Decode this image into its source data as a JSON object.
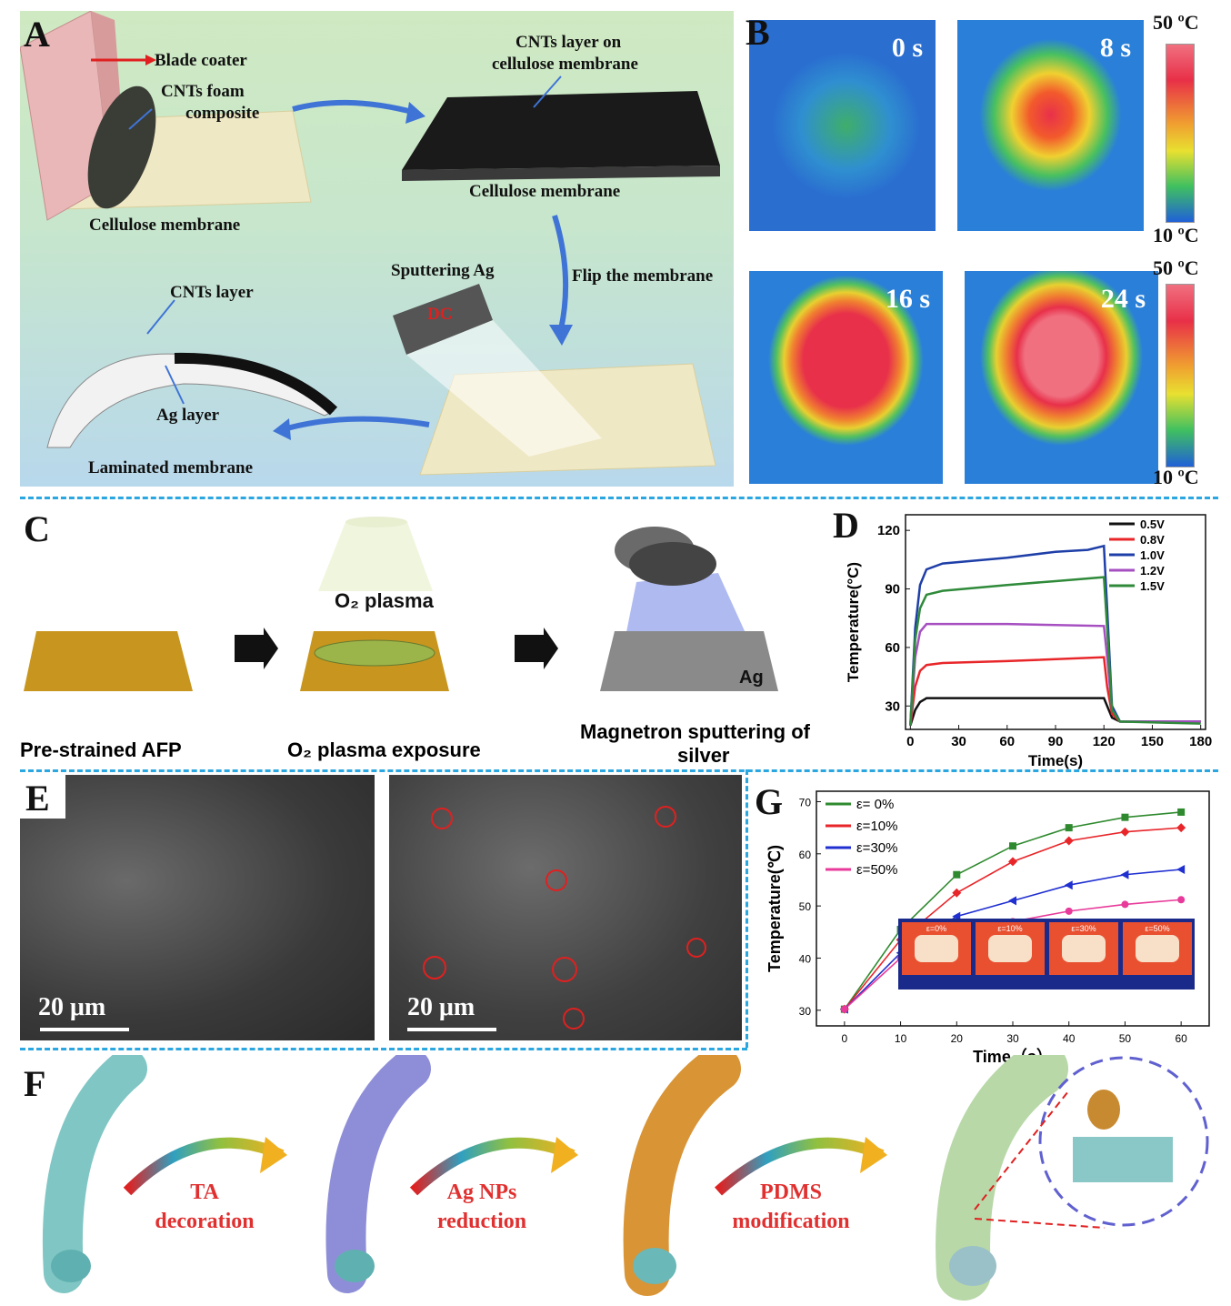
{
  "panels": {
    "A": "A",
    "B": "B",
    "C": "C",
    "D": "D",
    "E": "E",
    "F": "F",
    "G": "G"
  },
  "panelA": {
    "blade_coater": "Blade coater",
    "cnts_foam_1": "CNTs foam",
    "cnts_foam_2": "composite",
    "cellulose_1": "Cellulose membrane",
    "cnts_layer_on_1": "CNTs layer on",
    "cnts_layer_on_2": "cellulose membrane",
    "cellulose_2": "Cellulose membrane",
    "flip": "Flip the membrane",
    "sputtering": "Sputtering Ag",
    "dc": "DC",
    "cnts_layer": "CNTs layer",
    "ag_layer": "Ag layer",
    "laminated": "Laminated membrane"
  },
  "panelB": {
    "times": [
      "0 s",
      "8 s",
      "16 s",
      "24 s"
    ],
    "cb_top_1": "50 ºC",
    "cb_bot_1": "10 ºC",
    "cb_top_2": "50 ºC",
    "cb_bot_2": "10 ºC"
  },
  "panelC": {
    "plasma": "O₂ plasma",
    "ag": "Ag",
    "step1": "Pre-strained AFP",
    "step2": "O₂ plasma exposure",
    "step3_1": "Magnetron sputtering of",
    "step3_2": "silver"
  },
  "panelE": {
    "scale1": "20 μm",
    "scale2": "20 μm"
  },
  "panelF": {
    "step1_1": "TA",
    "step1_2": "decoration",
    "step2_1": "Ag NPs",
    "step2_2": "reduction",
    "step3_1": "PDMS",
    "step3_2": "modification"
  },
  "colors": {
    "dash": "#2aa6e0",
    "panelA_bg_top": "#c9e8c4",
    "panelA_bg_bottom": "#b9d9ee",
    "arrow": "#3f74d6",
    "caption_red": "#e03030"
  },
  "chart_data": [
    {
      "id": "D",
      "type": "line",
      "xlabel": "Time(s)",
      "ylabel": "Temperature(°C)",
      "xlim": [
        -3,
        183
      ],
      "ylim": [
        18,
        128
      ],
      "xticks": [
        0,
        30,
        60,
        90,
        120,
        150,
        180
      ],
      "yticks": [
        30,
        60,
        90,
        120
      ],
      "legend_position": "top-right",
      "series": [
        {
          "name": "0.5V",
          "color": "#111111",
          "x": [
            0,
            3,
            6,
            10,
            20,
            60,
            120,
            122,
            125,
            130,
            180
          ],
          "y": [
            20,
            28,
            32,
            34,
            34,
            34,
            34,
            30,
            24,
            22,
            22
          ]
        },
        {
          "name": "0.8V",
          "color": "#e8262a",
          "x": [
            0,
            3,
            6,
            10,
            20,
            60,
            120,
            122,
            125,
            130,
            180
          ],
          "y": [
            20,
            40,
            48,
            51,
            52,
            53,
            55,
            40,
            26,
            22,
            22
          ]
        },
        {
          "name": "1.0V",
          "color": "#1f3fa8",
          "x": [
            0,
            3,
            6,
            10,
            20,
            60,
            90,
            110,
            120,
            122,
            125,
            130,
            180
          ],
          "y": [
            20,
            70,
            92,
            100,
            103,
            106,
            109,
            110,
            112,
            80,
            30,
            22,
            22
          ]
        },
        {
          "name": "1.2V",
          "color": "#a64fc1",
          "x": [
            0,
            3,
            6,
            10,
            20,
            60,
            120,
            122,
            125,
            130,
            180
          ],
          "y": [
            20,
            55,
            68,
            72,
            72,
            72,
            71,
            55,
            28,
            22,
            22
          ]
        },
        {
          "name": "1.5V",
          "color": "#2f8a3a",
          "x": [
            0,
            3,
            6,
            10,
            20,
            60,
            90,
            120,
            122,
            125,
            130,
            180
          ],
          "y": [
            20,
            64,
            80,
            87,
            89,
            92,
            94,
            96,
            70,
            28,
            22,
            21
          ]
        }
      ]
    },
    {
      "id": "G",
      "type": "line",
      "xlabel": "Time（s）",
      "ylabel": "Temperature(℃)",
      "xlim": [
        -5,
        65
      ],
      "ylim": [
        27,
        72
      ],
      "xticks": [
        0,
        10,
        20,
        30,
        40,
        50,
        60
      ],
      "yticks": [
        30,
        40,
        50,
        60,
        70
      ],
      "legend_position": "top-left",
      "series": [
        {
          "name": "ε= 0%",
          "color": "#2f8a2f",
          "marker": "square",
          "x": [
            0,
            10,
            20,
            30,
            40,
            50,
            60
          ],
          "y": [
            30.2,
            45.5,
            56,
            61.5,
            65,
            67,
            68
          ]
        },
        {
          "name": "ε=10%",
          "color": "#e8262a",
          "marker": "diamond",
          "x": [
            0,
            10,
            20,
            30,
            40,
            50,
            60
          ],
          "y": [
            30.2,
            43.5,
            52.5,
            58.5,
            62.5,
            64.2,
            65
          ]
        },
        {
          "name": "ε=30%",
          "color": "#1f2fd0",
          "marker": "triangle",
          "x": [
            0,
            10,
            20,
            30,
            40,
            50,
            60
          ],
          "y": [
            30.2,
            41,
            48,
            51,
            54,
            56,
            57
          ]
        },
        {
          "name": "ε=50%",
          "color": "#e83a9a",
          "marker": "circle",
          "x": [
            0,
            10,
            20,
            30,
            40,
            50,
            60
          ],
          "y": [
            30.2,
            40,
            45,
            47,
            49,
            50.3,
            51.2
          ]
        }
      ],
      "inset_labels": [
        "ε=0%",
        "ε=10%",
        "ε=30%",
        "ε=50%"
      ]
    }
  ]
}
